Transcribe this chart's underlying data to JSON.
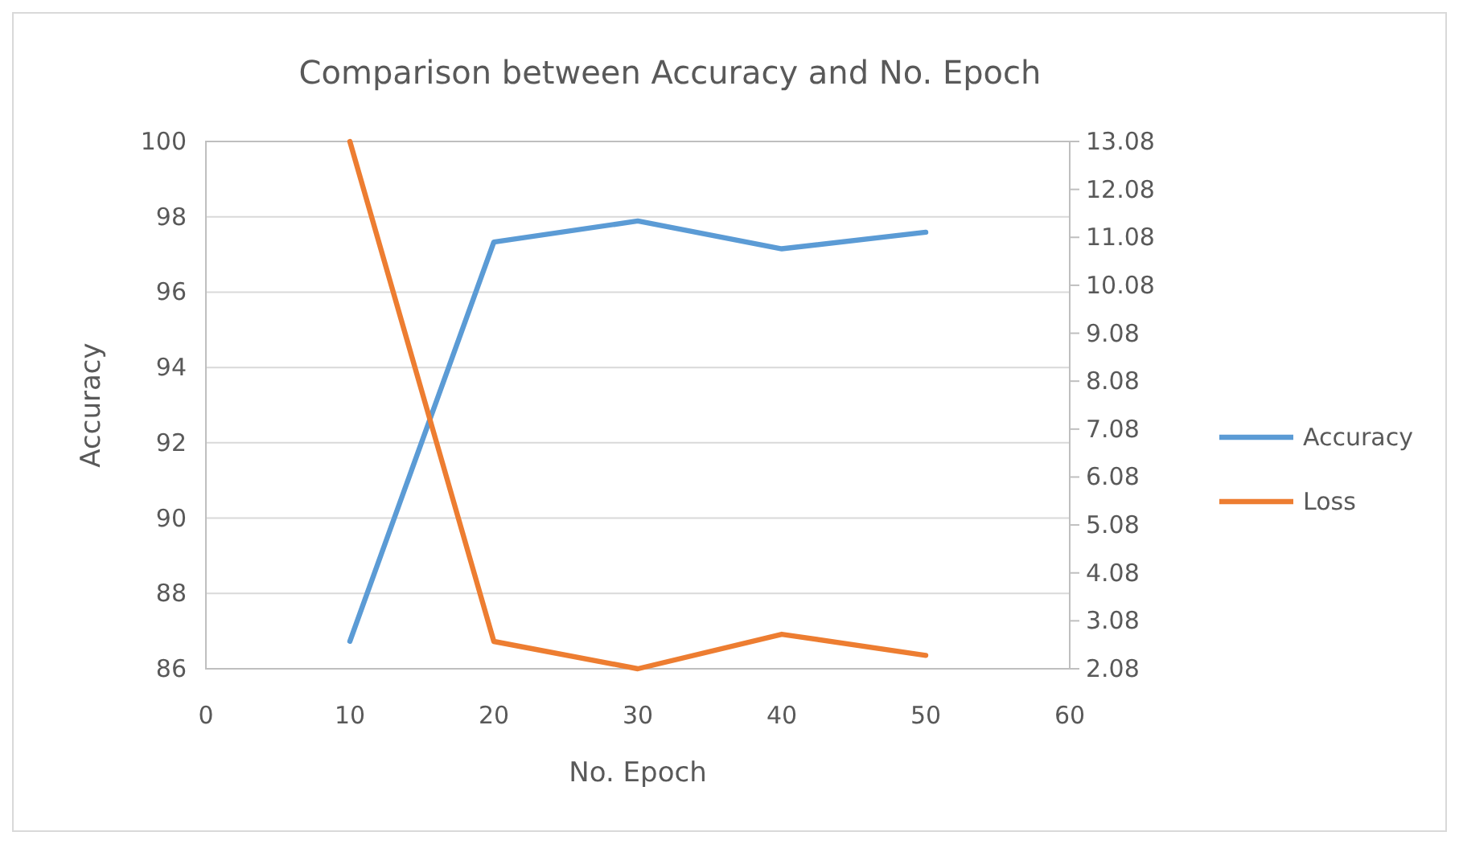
{
  "chart_data": {
    "type": "line",
    "title": "Comparison between Accuracy and No. Epoch",
    "xlabel": "No. Epoch",
    "ylabel": "Accuracy",
    "x": [
      10,
      20,
      30,
      40,
      50
    ],
    "series": [
      {
        "name": "Accuracy",
        "color": "#5b9bd5",
        "values": [
          86.73,
          97.33,
          97.89,
          97.15,
          97.59
        ]
      },
      {
        "name": "Loss",
        "color": "#ed7d31",
        "values": [
          13.08,
          2.65,
          2.08,
          2.8,
          2.36
        ],
        "axis": "y2"
      }
    ],
    "xlim": [
      0,
      60
    ],
    "xticks": [
      0,
      10,
      20,
      30,
      40,
      50,
      60
    ],
    "ylim": [
      86,
      100
    ],
    "yticks": [
      86,
      88,
      90,
      92,
      94,
      96,
      98,
      100
    ],
    "y2lim": [
      2.08,
      13.08
    ],
    "y2ticks": [
      2.08,
      3.08,
      4.08,
      5.08,
      6.08,
      7.08,
      8.08,
      9.08,
      10.08,
      11.08,
      12.08,
      13.08
    ],
    "grid": "y",
    "legend": "right",
    "marker": "none",
    "line_style": "solid"
  }
}
